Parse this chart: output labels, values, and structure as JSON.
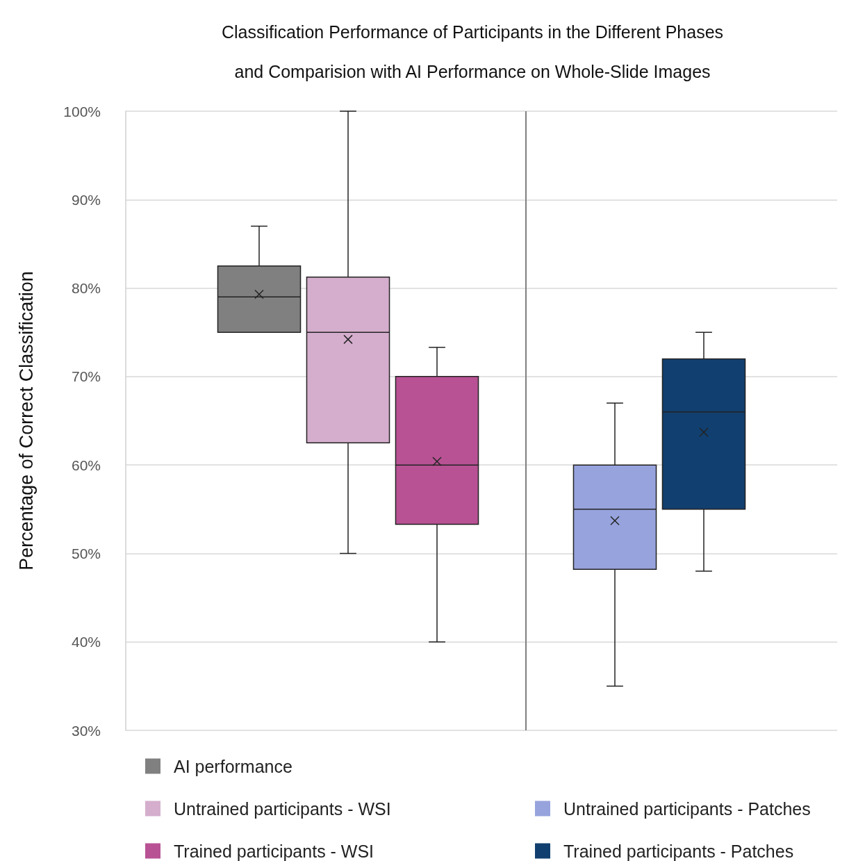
{
  "chart_data": {
    "type": "box",
    "title": "Classification Performance of Participants in the Different Phases\nand Comparision with AI Performance on Whole-Slide Images",
    "ylabel": "Percentage of Correct Classification",
    "categories": [
      null,
      null,
      null,
      null,
      null,
      null,
      null,
      null
    ],
    "ylim": [
      30,
      100
    ],
    "yticks": [
      {
        "value": 30,
        "label": "30%"
      },
      {
        "value": 40,
        "label": "40%"
      },
      {
        "value": 50,
        "label": "50%"
      },
      {
        "value": 60,
        "label": "60%"
      },
      {
        "value": 70,
        "label": "70%"
      },
      {
        "value": 80,
        "label": "80%"
      },
      {
        "value": 90,
        "label": "90%"
      },
      {
        "value": 100,
        "label": "100%"
      }
    ],
    "grid": "y",
    "legend": "bottom",
    "marker": "cross",
    "series": [
      {
        "name": "AI performance",
        "color": "#808080",
        "boxes": [
          null,
          {
            "low": 75,
            "q1": 75,
            "median": 79,
            "q3": 82.5,
            "high": 87,
            "mean": 79.3
          },
          null,
          null,
          null,
          null,
          null,
          null
        ]
      },
      {
        "name": "Untrained participants - WSI",
        "color": "#d5aecd",
        "boxes": [
          null,
          null,
          {
            "low": 50,
            "q1": 62.5,
            "median": 75,
            "q3": 81.25,
            "high": 100,
            "mean": 74.2
          },
          null,
          null,
          null,
          null,
          null
        ]
      },
      {
        "name": "Trained participants - WSI",
        "color": "#b85294",
        "boxes": [
          null,
          null,
          null,
          {
            "low": 40,
            "q1": 53.3,
            "median": 60,
            "q3": 70,
            "high": 73.3,
            "mean": 60.4
          },
          null,
          null,
          null,
          null
        ]
      },
      {
        "name": "Untrained participants - Patches",
        "color": "#97a3dd",
        "boxes": [
          null,
          null,
          null,
          null,
          null,
          {
            "low": 35,
            "q1": 48.2,
            "median": 55,
            "q3": 60,
            "high": 67,
            "mean": 53.7
          },
          null,
          null
        ]
      },
      {
        "name": "Trained participants - Patches",
        "color": "#113f6f",
        "boxes": [
          null,
          null,
          null,
          null,
          null,
          null,
          {
            "low": 48,
            "q1": 55,
            "median": 66,
            "q3": 72,
            "high": 75,
            "mean": 63.7
          },
          null
        ]
      }
    ]
  }
}
